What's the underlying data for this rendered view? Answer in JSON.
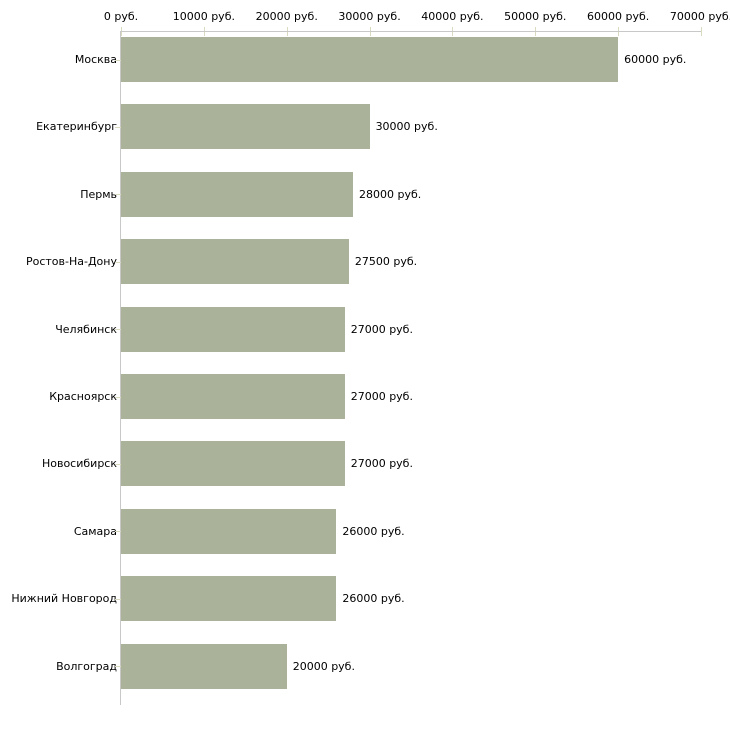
{
  "chart_data": {
    "type": "bar",
    "orientation": "horizontal",
    "title": "",
    "xlabel": "",
    "ylabel": "",
    "unit": "руб.",
    "xlim": [
      0,
      70000
    ],
    "x_tick_step": 10000,
    "x_tick_labels": [
      "0 руб.",
      "10000 руб.",
      "20000 руб.",
      "30000 руб.",
      "40000 руб.",
      "50000 руб.",
      "60000 руб.",
      "70000 руб."
    ],
    "categories": [
      "Москва",
      "Екатеринбург",
      "Пермь",
      "Ростов-На-Дону",
      "Челябинск",
      "Красноярск",
      "Новосибирск",
      "Самара",
      "Нижний Новгород",
      "Волгоград"
    ],
    "values": [
      60000,
      30000,
      28000,
      27500,
      27000,
      27000,
      27000,
      26000,
      26000,
      20000
    ],
    "value_labels": [
      "60000 руб.",
      "30000 руб.",
      "28000 руб.",
      "27500 руб.",
      "27000 руб.",
      "27000 руб.",
      "27000 руб.",
      "26000 руб.",
      "26000 руб.",
      "20000 руб."
    ],
    "legend": false,
    "grid": false,
    "colors": {
      "bar": "#abb29a",
      "axis_line": "#c8c8c8",
      "tick_mark": "#d9dabf",
      "text": "#000000",
      "background": "#ffffff"
    }
  }
}
